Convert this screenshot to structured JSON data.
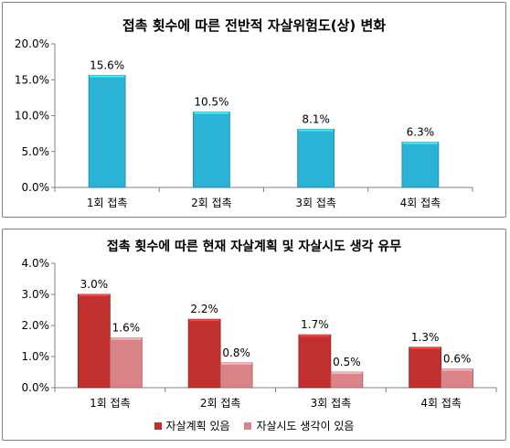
{
  "chart_data": [
    {
      "type": "bar",
      "title": "접촉 횟수에 따른 전반적 자살위험도(상) 변화",
      "categories": [
        "1회 접촉",
        "2회 접촉",
        "3회 접촉",
        "4회 접촉"
      ],
      "series": [
        {
          "values": [
            15.6,
            10.5,
            8.1,
            6.3
          ],
          "color": "#2bb3d6",
          "value_labels": [
            "15.6%",
            "10.5%",
            "8.1%",
            "6.3%"
          ]
        }
      ],
      "yticks": [
        "0.0%",
        "5.0%",
        "10.0%",
        "15.0%",
        "20.0%"
      ],
      "ylim": [
        0,
        20
      ],
      "grid": false,
      "legend": "none"
    },
    {
      "type": "bar",
      "title": "접촉 횟수에 따른 현재 자살계획 및 자살시도 생각 유무",
      "categories": [
        "1회 접촉",
        "2회 접촉",
        "3회 접촉",
        "4회 접촉"
      ],
      "series": [
        {
          "name": "자살계획 있음",
          "values": [
            3.0,
            2.2,
            1.7,
            1.3
          ],
          "color": "#c0302f",
          "value_labels": [
            "3.0%",
            "2.2%",
            "1.7%",
            "1.3%"
          ]
        },
        {
          "name": "자살시도 생각이 있음",
          "values": [
            1.6,
            0.8,
            0.5,
            0.6
          ],
          "color": "#d98486",
          "value_labels": [
            "1.6%",
            "0.8%",
            "0.5%",
            "0.6%"
          ]
        }
      ],
      "yticks": [
        "0.0%",
        "1.0%",
        "2.0%",
        "3.0%",
        "4.0%"
      ],
      "ylim": [
        0,
        4
      ],
      "grid": false,
      "legend": "bottom"
    }
  ]
}
